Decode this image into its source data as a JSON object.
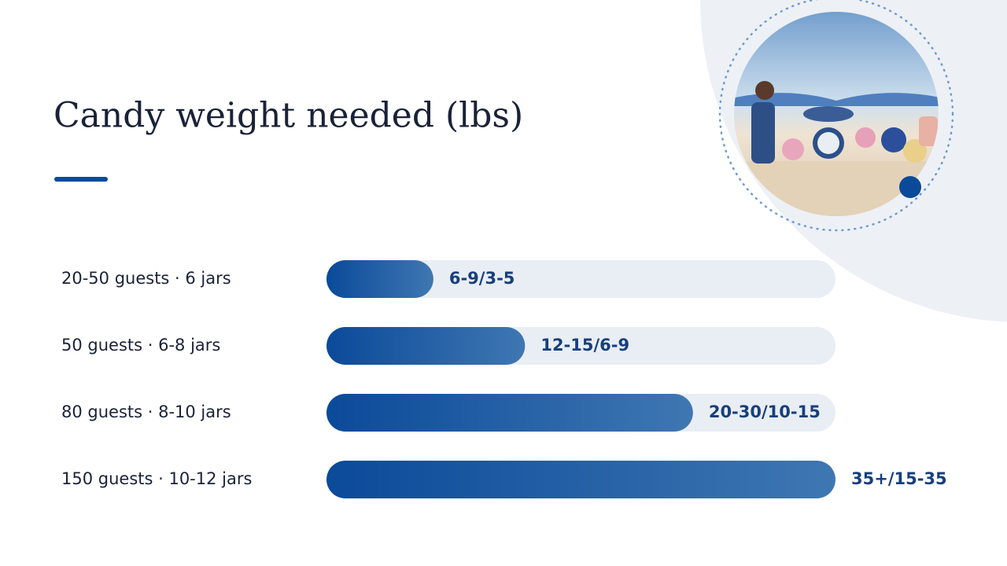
{
  "chart_data": {
    "type": "bar",
    "orientation": "horizontal",
    "title": "Candy weight needed (lbs)",
    "categories": [
      "20-50 guests · 6 jars",
      "50 guests · 6-8 jars",
      "80 guests · 8-10 jars",
      "150 guests · 10-12 jars"
    ],
    "values": [
      21,
      39,
      72,
      100
    ],
    "value_labels": [
      "6-9/3-5",
      "12-15/6-9",
      "20-30/10-15",
      "35+/15-35"
    ],
    "xlim": [
      0,
      100
    ],
    "color": "#0b4a9a"
  }
}
